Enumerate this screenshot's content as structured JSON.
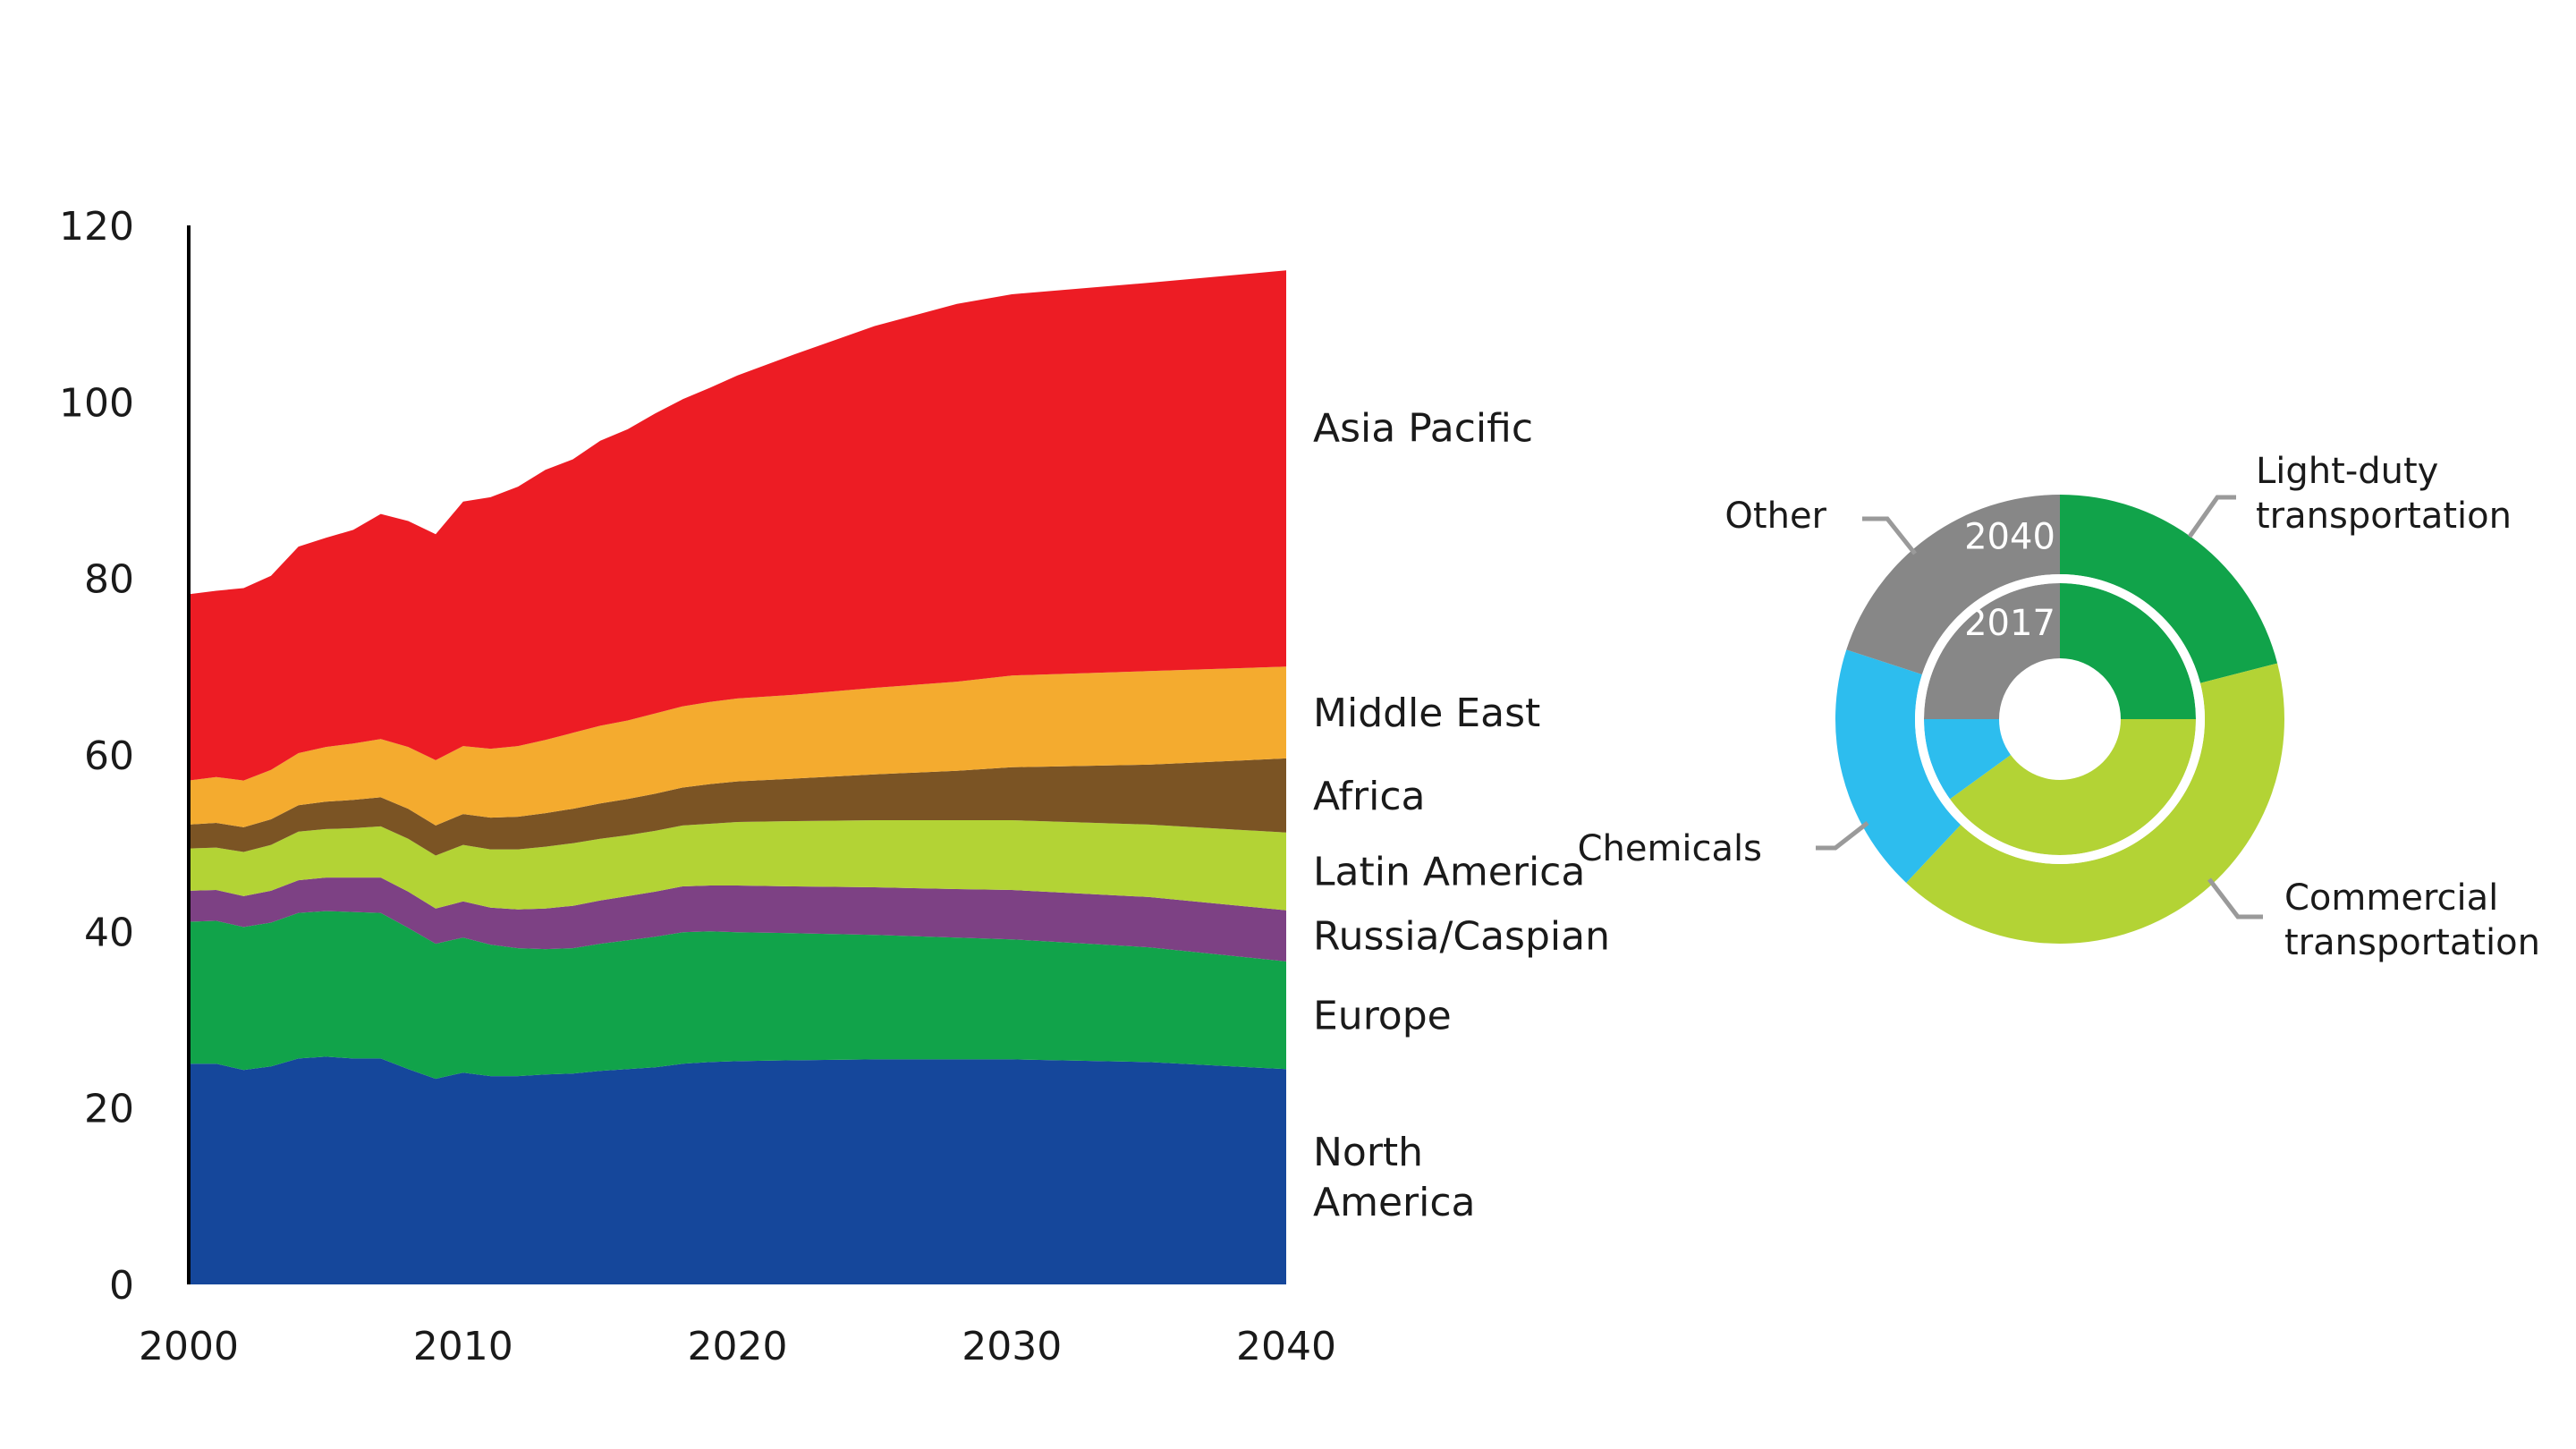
{
  "chart_data": [
    {
      "type": "area",
      "stacked": true,
      "title": "",
      "xlabel": "",
      "ylabel": "",
      "xlim": [
        2000,
        2040
      ],
      "ylim": [
        0,
        120
      ],
      "x_ticks": [
        2000,
        2010,
        2020,
        2030,
        2040
      ],
      "y_ticks": [
        0,
        20,
        40,
        60,
        80,
        100,
        120
      ],
      "grid": false,
      "legend": "right-inline",
      "x": [
        2000,
        2001,
        2002,
        2003,
        2004,
        2005,
        2006,
        2007,
        2008,
        2009,
        2010,
        2011,
        2012,
        2013,
        2014,
        2015,
        2016,
        2017,
        2018,
        2019,
        2020,
        2022,
        2025,
        2028,
        2030,
        2035,
        2040
      ],
      "series": [
        {
          "name": "North America",
          "label_lines": [
            "North",
            "America"
          ],
          "color": "#15479b",
          "values": [
            25.0,
            25.0,
            24.3,
            24.7,
            25.6,
            25.8,
            25.6,
            25.6,
            24.4,
            23.3,
            24.0,
            23.6,
            23.6,
            23.8,
            23.9,
            24.2,
            24.4,
            24.6,
            25.0,
            25.2,
            25.3,
            25.4,
            25.5,
            25.5,
            25.5,
            25.2,
            24.4
          ]
        },
        {
          "name": "Europe",
          "label_lines": [
            "Europe"
          ],
          "color": "#11a34a",
          "values": [
            16.1,
            16.2,
            16.2,
            16.3,
            16.5,
            16.5,
            16.6,
            16.5,
            16.0,
            15.3,
            15.3,
            14.9,
            14.5,
            14.2,
            14.2,
            14.4,
            14.6,
            14.8,
            14.9,
            14.8,
            14.6,
            14.4,
            14.1,
            13.8,
            13.6,
            13.0,
            12.2
          ]
        },
        {
          "name": "Russia/Caspian",
          "label_lines": [
            "Russia/Caspian"
          ],
          "color": "#7d4184",
          "values": [
            3.5,
            3.5,
            3.5,
            3.6,
            3.7,
            3.8,
            3.9,
            4.0,
            4.1,
            4.0,
            4.1,
            4.2,
            4.4,
            4.6,
            4.8,
            4.9,
            5.0,
            5.1,
            5.2,
            5.2,
            5.3,
            5.3,
            5.4,
            5.5,
            5.6,
            5.7,
            5.8
          ]
        },
        {
          "name": "Latin America",
          "label_lines": [
            "Latin America"
          ],
          "color": "#b3d335",
          "values": [
            4.8,
            4.8,
            5.0,
            5.2,
            5.5,
            5.5,
            5.6,
            5.8,
            6.0,
            6.0,
            6.4,
            6.6,
            6.8,
            7.0,
            7.1,
            7.0,
            6.9,
            6.9,
            6.9,
            7.0,
            7.2,
            7.4,
            7.6,
            7.8,
            7.9,
            8.2,
            8.8
          ]
        },
        {
          "name": "Africa",
          "label_lines": [
            "Africa"
          ],
          "color": "#7b5424",
          "values": [
            2.7,
            2.8,
            2.8,
            2.9,
            3.0,
            3.1,
            3.2,
            3.3,
            3.4,
            3.4,
            3.5,
            3.6,
            3.7,
            3.8,
            3.9,
            4.0,
            4.1,
            4.2,
            4.3,
            4.5,
            4.6,
            4.8,
            5.2,
            5.6,
            6.0,
            6.8,
            8.4
          ]
        },
        {
          "name": "Middle East",
          "label_lines": [
            "Middle East"
          ],
          "color": "#f4ab2f",
          "values": [
            5.0,
            5.2,
            5.3,
            5.6,
            5.9,
            6.2,
            6.4,
            6.6,
            7.0,
            7.4,
            7.7,
            7.8,
            8.0,
            8.3,
            8.6,
            8.8,
            8.9,
            9.1,
            9.2,
            9.3,
            9.4,
            9.5,
            9.8,
            10.1,
            10.4,
            10.6,
            10.4
          ]
        },
        {
          "name": "Asia Pacific",
          "label_lines": [
            "Asia Pacific"
          ],
          "color": "#ed1c24",
          "values": [
            21.1,
            21.1,
            21.8,
            22.0,
            23.4,
            23.7,
            24.2,
            25.5,
            25.6,
            25.6,
            27.7,
            28.5,
            29.4,
            30.6,
            31.0,
            32.3,
            33.0,
            34.0,
            34.8,
            35.6,
            36.6,
            38.5,
            41.0,
            42.8,
            43.2,
            44.0,
            44.9
          ]
        }
      ]
    },
    {
      "type": "pie",
      "variant": "nested-donut",
      "rings": [
        {
          "label": "2040",
          "position": "outer",
          "slices": [
            {
              "name": "Light-duty transportation",
              "value": 21,
              "color": "#11a34a"
            },
            {
              "name": "Commercial transportation",
              "value": 41,
              "color": "#b3d335"
            },
            {
              "name": "Chemicals",
              "value": 18,
              "color": "#2dbdee"
            },
            {
              "name": "Other",
              "value": 20,
              "color": "#878787"
            }
          ]
        },
        {
          "label": "2017",
          "position": "inner",
          "slices": [
            {
              "name": "Light-duty transportation",
              "value": 25,
              "color": "#11a34a"
            },
            {
              "name": "Commercial transportation",
              "value": 40,
              "color": "#b3d335"
            },
            {
              "name": "Chemicals",
              "value": 10,
              "color": "#2dbdee"
            },
            {
              "name": "Other",
              "value": 25,
              "color": "#878787"
            }
          ]
        }
      ],
      "legend_labels": [
        {
          "name": "Light-duty transportation",
          "lines": [
            "Light-duty",
            "transportation"
          ]
        },
        {
          "name": "Commercial transportation",
          "lines": [
            "Commercial",
            "transportation"
          ]
        },
        {
          "name": "Chemicals",
          "lines": [
            "Chemicals"
          ]
        },
        {
          "name": "Other",
          "lines": [
            "Other"
          ]
        }
      ],
      "leader_color": "#9a9a9a"
    }
  ]
}
